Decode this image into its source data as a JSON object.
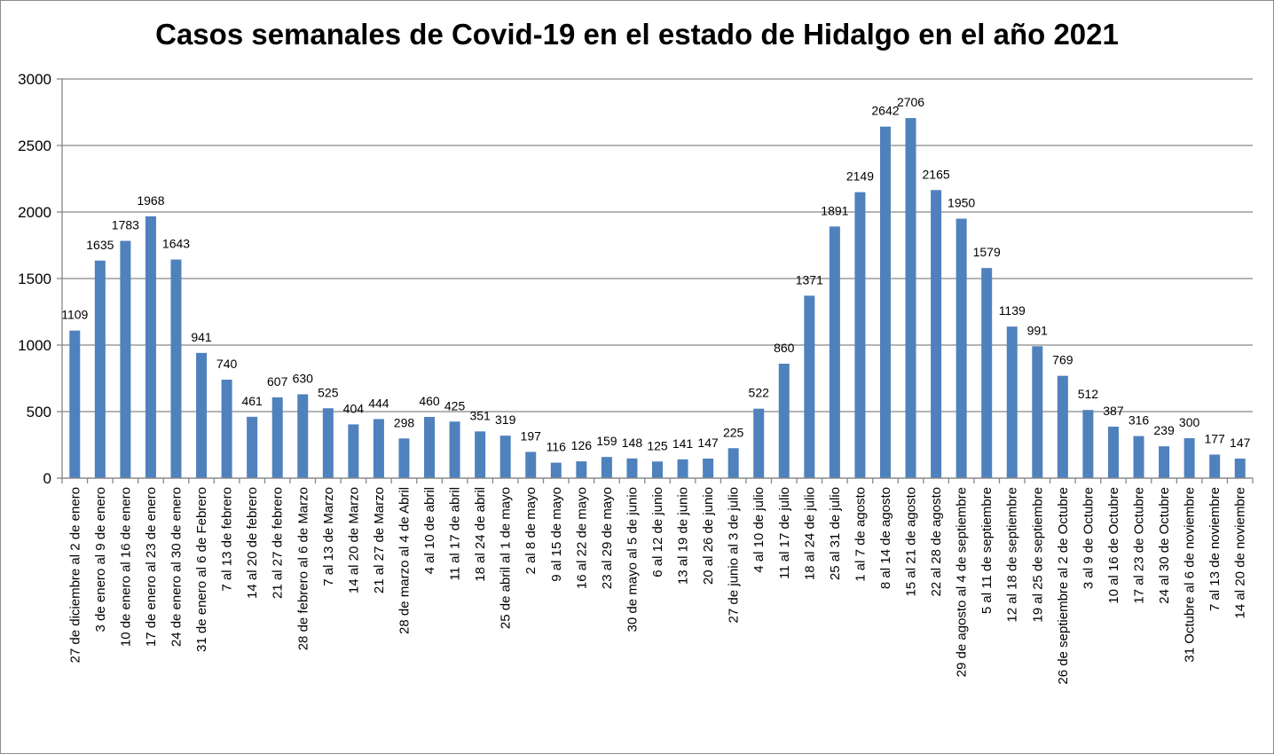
{
  "chart_data": {
    "type": "bar",
    "title": "Casos semanales de Covid-19 en el estado de Hidalgo en el año 2021",
    "xlabel": "",
    "ylabel": "",
    "ylim": [
      0,
      3000
    ],
    "yticks": [
      "0",
      "500",
      "1000",
      "1500",
      "2000",
      "2500",
      "3000"
    ],
    "grid": true,
    "legend": "none",
    "bar_color": "#4f81bd",
    "categories": [
      "27 de diciembre al 2 de enero",
      "3 de enero al 9 de enero",
      "10 de enero al 16 de enero",
      "17 de enero al 23 de enero",
      "24 de enero al 30 de enero",
      "31 de enero al 6 de Febrero",
      "7 al 13 de febrero",
      "14 al 20 de febrero",
      "21 al 27 de febrero",
      "28 de febrero al  6 de Marzo",
      "7 al 13 de Marzo",
      "14 al 20 de Marzo",
      "21 al 27 de Marzo",
      "28 de marzo al 4 de Abril",
      "4 al 10 de abril",
      "11 al 17 de abril",
      "18 al 24 de abril",
      "25 de abril al 1 de mayo",
      "2 al 8 de mayo",
      "9 al 15 de mayo",
      "16 al 22 de mayo",
      "23 al 29 de mayo",
      "30 de mayo al 5 de junio",
      "6 al 12 de junio",
      "13 al 19 de junio",
      "20 al 26 de junio",
      "27 de junio al 3 de julio",
      "4 al 10 de julio",
      "11 al 17 de julio",
      "18 al 24 de julio",
      "25 al 31 de julio",
      "1 al 7 de agosto",
      "8 al 14 de agosto",
      "15 al 21 de agosto",
      "22 al 28 de agosto",
      "29 de agosto al 4 de septiembre",
      "5 al 11 de septiembre",
      "12 al 18 de septiembre",
      "19 al 25 de septiembre",
      "26 de septiembre al 2 de Octubre",
      "3 al 9 de Octubre",
      "10 al 16 de Octubre",
      "17 al 23 de Octubre",
      "24 al 30 de Octubre",
      "31 Octubre al 6 de noviembre",
      "7 al 13 de noviembre",
      "14 al 20 de noviembre"
    ],
    "values": [
      1109,
      1635,
      1783,
      1968,
      1643,
      941,
      740,
      461,
      607,
      630,
      525,
      404,
      444,
      298,
      460,
      425,
      351,
      319,
      197,
      116,
      126,
      159,
      148,
      125,
      141,
      147,
      225,
      522,
      860,
      1371,
      1891,
      2149,
      2642,
      2706,
      2165,
      1950,
      1579,
      1139,
      991,
      769,
      512,
      387,
      316,
      239,
      300,
      177,
      147
    ]
  }
}
